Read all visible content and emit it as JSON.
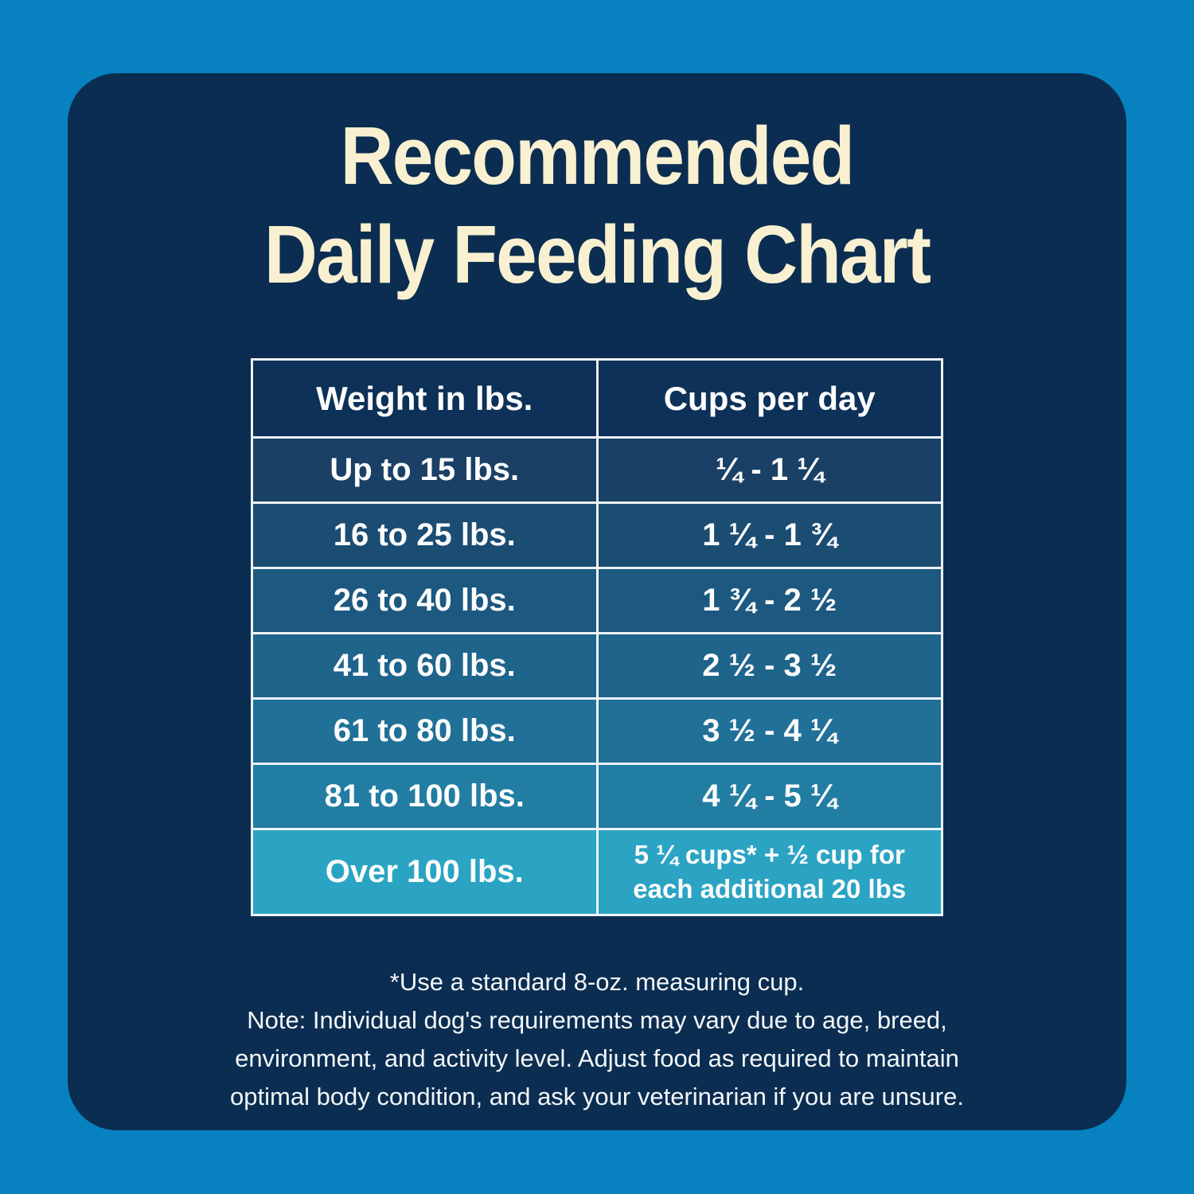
{
  "colors": {
    "outer_bg": "#0781bf",
    "card_bg": "#0b2d51",
    "header_bg": "#0d3158",
    "table_border": "#edf2f6",
    "title_color": "#f8f0d0",
    "cell_text": "#fdfdfd"
  },
  "title": {
    "line1": "Recommended",
    "line2": "Daily Feeding Chart"
  },
  "table": {
    "headers": [
      "Weight in lbs.",
      "Cups per day"
    ],
    "rows": [
      {
        "weight": "Up to 15 lbs.",
        "cups": "¼ - 1 ¼",
        "bg": "#1a4066"
      },
      {
        "weight": "16 to 25 lbs.",
        "cups": "1 ¼ - 1 ¾",
        "bg": "#1b4c72"
      },
      {
        "weight": "26 to 40 lbs.",
        "cups": "1 ¾ - 2 ½",
        "bg": "#1c587f"
      },
      {
        "weight": "41 to 60 lbs.",
        "cups": "2 ½ - 3 ½",
        "bg": "#1e648b"
      },
      {
        "weight": "61 to 80 lbs.",
        "cups": "3 ½ - 4 ¼",
        "bg": "#207097"
      },
      {
        "weight": "81 to 100 lbs.",
        "cups": "4 ¼ - 5 ¼",
        "bg": "#227da3"
      },
      {
        "weight": "Over 100 lbs.",
        "cups": "5 ¼ cups* + ½ cup for each additional 20 lbs",
        "bg": "#2ba4c4"
      }
    ]
  },
  "footnote": {
    "measuring_cup_note": "*Use a standard 8-oz. measuring cup.",
    "disclaimer": "Note: Individual dog's requirements may vary due to age, breed, environment, and activity level. Adjust food as required to maintain optimal body condition, and ask your veterinarian if you are unsure."
  },
  "chart_data": {
    "type": "table",
    "title": "Recommended Daily Feeding Chart",
    "columns": [
      "Weight in lbs.",
      "Cups per day"
    ],
    "rows": [
      [
        "Up to 15 lbs.",
        "¼ - 1 ¼"
      ],
      [
        "16 to 25 lbs.",
        "1 ¼ - 1 ¾"
      ],
      [
        "26 to 40 lbs.",
        "1 ¾ - 2 ½"
      ],
      [
        "41 to 60 lbs.",
        "2 ½ - 3 ½"
      ],
      [
        "61 to 80 lbs.",
        "3 ½ - 4 ¼"
      ],
      [
        "81 to 100 lbs.",
        "4 ¼ - 5 ¼"
      ],
      [
        "Over 100 lbs.",
        "5 ¼ cups* + ½ cup for each additional 20 lbs"
      ]
    ],
    "numeric_series": {
      "weight_band_upper_lbs": [
        15,
        25,
        40,
        60,
        80,
        100,
        null
      ],
      "cups_min": [
        0.25,
        1.25,
        1.75,
        2.5,
        3.5,
        4.25,
        5.25
      ],
      "cups_max": [
        1.25,
        1.75,
        2.5,
        3.5,
        4.25,
        5.25,
        null
      ]
    },
    "notes": [
      "*Use a standard 8-oz. measuring cup.",
      "Note: Individual dog's requirements may vary due to age, breed, environment, and activity level. Adjust food as required to maintain optimal body condition, and ask your veterinarian if you are unsure."
    ],
    "layout_hints": {
      "row_color_gradient": [
        "#1a4066",
        "#2ba4c4"
      ],
      "header_position": "top",
      "grid": "white 3px borders"
    }
  }
}
